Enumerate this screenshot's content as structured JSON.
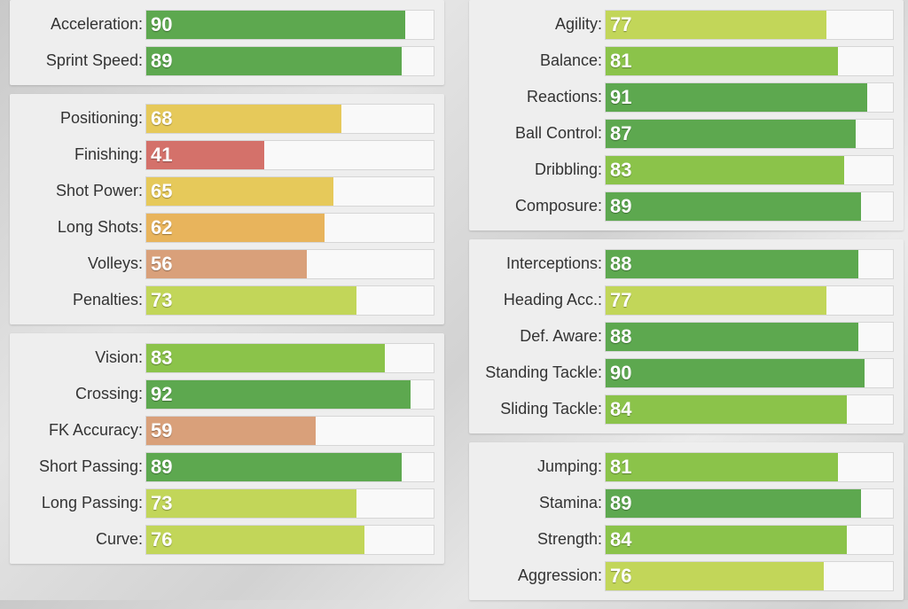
{
  "columns": [
    {
      "name": "left",
      "panels": [
        {
          "stats": [
            {
              "label": "Acceleration:",
              "value": 90
            },
            {
              "label": "Sprint Speed:",
              "value": 89
            }
          ]
        },
        {
          "stats": [
            {
              "label": "Positioning:",
              "value": 68
            },
            {
              "label": "Finishing:",
              "value": 41
            },
            {
              "label": "Shot Power:",
              "value": 65
            },
            {
              "label": "Long Shots:",
              "value": 62
            },
            {
              "label": "Volleys:",
              "value": 56
            },
            {
              "label": "Penalties:",
              "value": 73
            }
          ]
        },
        {
          "stats": [
            {
              "label": "Vision:",
              "value": 83
            },
            {
              "label": "Crossing:",
              "value": 92
            },
            {
              "label": "FK Accuracy:",
              "value": 59
            },
            {
              "label": "Short Passing:",
              "value": 89
            },
            {
              "label": "Long Passing:",
              "value": 73
            },
            {
              "label": "Curve:",
              "value": 76
            }
          ]
        }
      ]
    },
    {
      "name": "right",
      "panels": [
        {
          "stats": [
            {
              "label": "Agility:",
              "value": 77
            },
            {
              "label": "Balance:",
              "value": 81
            },
            {
              "label": "Reactions:",
              "value": 91
            },
            {
              "label": "Ball Control:",
              "value": 87
            },
            {
              "label": "Dribbling:",
              "value": 83
            },
            {
              "label": "Composure:",
              "value": 89
            }
          ]
        },
        {
          "stats": [
            {
              "label": "Interceptions:",
              "value": 88
            },
            {
              "label": "Heading Acc.:",
              "value": 77
            },
            {
              "label": "Def. Aware:",
              "value": 88
            },
            {
              "label": "Standing Tackle:",
              "value": 90
            },
            {
              "label": "Sliding Tackle:",
              "value": 84
            }
          ]
        },
        {
          "stats": [
            {
              "label": "Jumping:",
              "value": 81
            },
            {
              "label": "Stamina:",
              "value": 89
            },
            {
              "label": "Strength:",
              "value": 84
            },
            {
              "label": "Aggression:",
              "value": 76
            }
          ]
        }
      ]
    }
  ],
  "colors": {
    "elite": "#5da84f",
    "great": "#8bc34a",
    "good": "#c2d659",
    "average": "#e6c95a",
    "fair": "#e8b45c",
    "low": "#d9a07a",
    "poor": "#d4716a",
    "track": "#f9f9f9"
  }
}
